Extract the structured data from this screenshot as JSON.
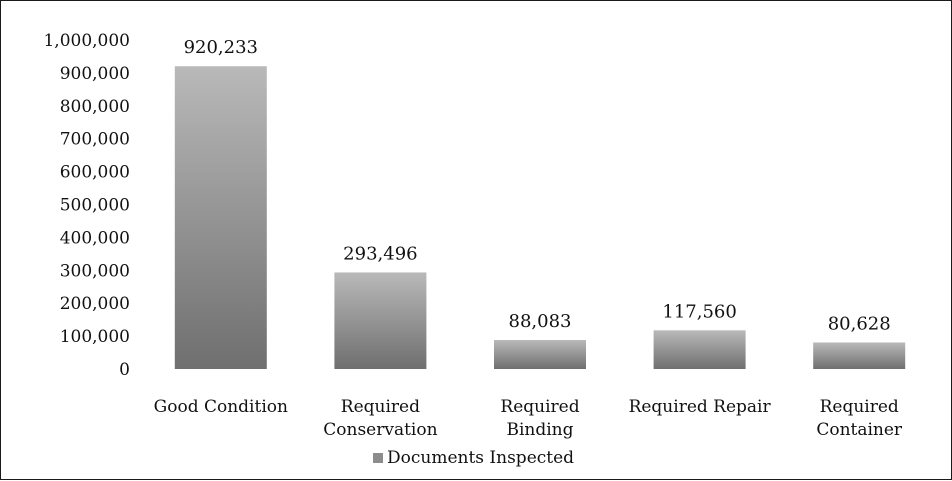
{
  "chart_data": {
    "type": "bar",
    "categories": [
      [
        "Good Condition"
      ],
      [
        "Required",
        "Conservation"
      ],
      [
        "Required",
        "Binding"
      ],
      [
        "Required Repair"
      ],
      [
        "Required",
        "Container"
      ]
    ],
    "series": [
      {
        "name": "Documents Inspected",
        "values": [
          920233,
          293496,
          88083,
          117560,
          80628
        ],
        "value_labels": [
          "920,233",
          "293,496",
          "88,083",
          "117,560",
          "80,628"
        ]
      }
    ],
    "y_ticks": [
      {
        "value": 0,
        "label": "0"
      },
      {
        "value": 100000,
        "label": "100,000"
      },
      {
        "value": 200000,
        "label": "200,000"
      },
      {
        "value": 300000,
        "label": "300,000"
      },
      {
        "value": 400000,
        "label": "400,000"
      },
      {
        "value": 500000,
        "label": "500,000"
      },
      {
        "value": 600000,
        "label": "600,000"
      },
      {
        "value": 700000,
        "label": "700,000"
      },
      {
        "value": 800000,
        "label": "800,000"
      },
      {
        "value": 900000,
        "label": "900,000"
      },
      {
        "value": 1000000,
        "label": "1,000,000"
      }
    ],
    "ylim": [
      0,
      1000000
    ],
    "grid": false,
    "legend_position": "bottom",
    "bar_color": "#8c8c8c"
  }
}
